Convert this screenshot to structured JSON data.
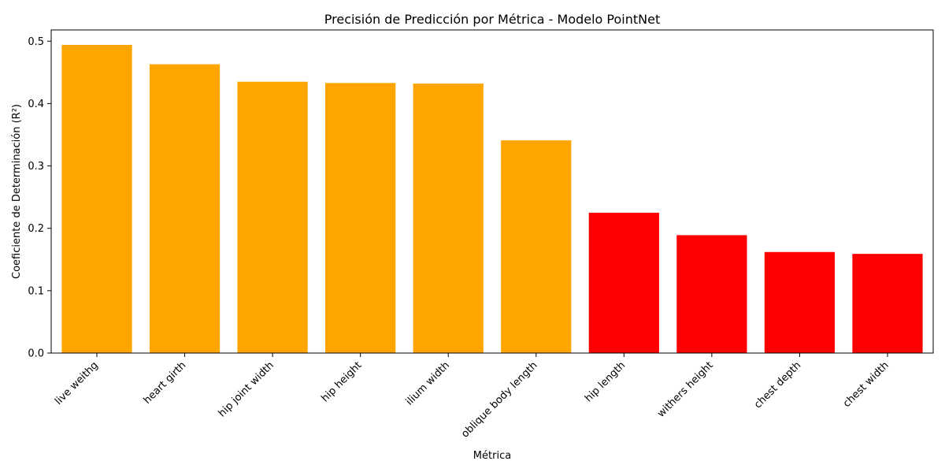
{
  "chart_data": {
    "type": "bar",
    "title": "Precisión de Predicción por Métrica - Modelo PointNet",
    "xlabel": "Métrica",
    "ylabel": "Coeficiente de Determinación (R²)",
    "categories": [
      "live weithg",
      "heart girth",
      "hip joint width",
      "hip height",
      "ilium width",
      "oblique body length",
      "hip length",
      "withers height",
      "chest depth",
      "chest width"
    ],
    "values": [
      0.494,
      0.463,
      0.435,
      0.433,
      0.432,
      0.341,
      0.225,
      0.189,
      0.162,
      0.159
    ],
    "bar_colors": [
      "#ffa500",
      "#ffa500",
      "#ffa500",
      "#ffa500",
      "#ffa500",
      "#ffa500",
      "#ff0000",
      "#ff0000",
      "#ff0000",
      "#ff0000"
    ],
    "ylim": [
      0,
      0.518
    ],
    "yticks": [
      0.0,
      0.1,
      0.2,
      0.3,
      0.4,
      0.5
    ],
    "ytick_labels": [
      "0.0",
      "0.1",
      "0.2",
      "0.3",
      "0.4",
      "0.5"
    ],
    "grid": false,
    "legend": "none"
  }
}
